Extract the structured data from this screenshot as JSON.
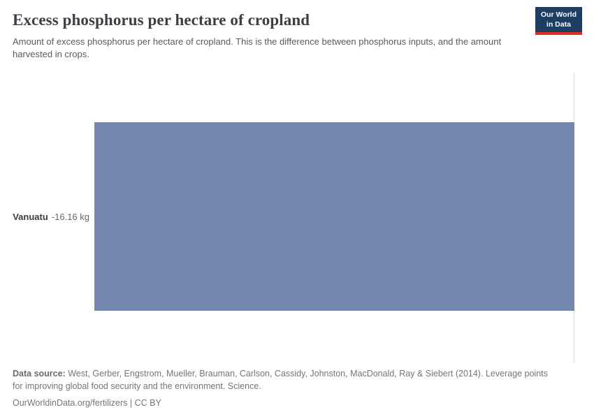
{
  "header": {
    "title": "Excess phosphorus per hectare of cropland",
    "subtitle": "Amount of excess phosphorus per hectare of cropland. This is the difference between phosphorus inputs, and the amount harvested in crops.",
    "logo": {
      "line1": "Our World",
      "line2": "in Data"
    }
  },
  "chart_data": {
    "type": "bar",
    "orientation": "horizontal",
    "title": "Excess phosphorus per hectare of cropland",
    "categories": [
      "Vanuatu"
    ],
    "values": [
      -16.16
    ],
    "value_labels": [
      "-16.16 kg"
    ],
    "unit": "kg",
    "xlim": [
      -16.16,
      0
    ],
    "grid": false,
    "legend": "none",
    "bar_color": "#7487af",
    "zero_line_color": "#dadada"
  },
  "footer": {
    "source_label": "Data source:",
    "source_text": " West, Gerber, Engstrom, Mueller, Brauman, Carlson, Cassidy, Johnston, MacDonald, Ray & Siebert (2014). Leverage points for improving global food security and the environment. Science.",
    "license_line": "OurWorldinData.org/fertilizers | CC BY"
  }
}
